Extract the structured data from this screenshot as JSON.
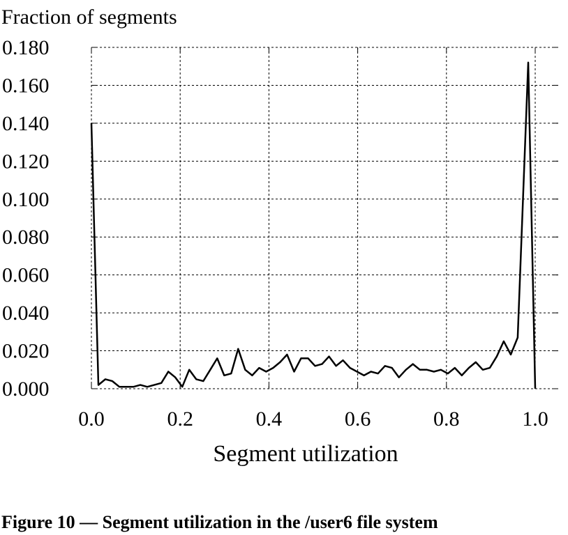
{
  "chart_data": {
    "type": "line",
    "title": "",
    "ylabel": "Fraction of segments",
    "xlabel": "Segment utilization",
    "xlim": [
      0.0,
      1.0
    ],
    "ylim": [
      0.0,
      0.18
    ],
    "grid": true,
    "x_ticks": [
      "0.0",
      "0.2",
      "0.4",
      "0.6",
      "0.8",
      "1.0"
    ],
    "y_ticks": [
      "0.000",
      "0.020",
      "0.040",
      "0.060",
      "0.080",
      "0.100",
      "0.120",
      "0.140",
      "0.160",
      "0.180"
    ],
    "series": [
      {
        "x": [
          0.0,
          0.0157,
          0.0315,
          0.0472,
          0.063,
          0.0787,
          0.0945,
          0.1102,
          0.126,
          0.1417,
          0.1575,
          0.1732,
          0.189,
          0.2047,
          0.2205,
          0.2362,
          0.252,
          0.2677,
          0.2835,
          0.2992,
          0.315,
          0.3307,
          0.3465,
          0.3622,
          0.378,
          0.3937,
          0.4094,
          0.4252,
          0.4409,
          0.4567,
          0.4724,
          0.4882,
          0.5039,
          0.5197,
          0.5354,
          0.5512,
          0.5669,
          0.5827,
          0.5984,
          0.6142,
          0.6299,
          0.6457,
          0.6614,
          0.6772,
          0.6929,
          0.7087,
          0.7244,
          0.7402,
          0.7559,
          0.7717,
          0.7874,
          0.8031,
          0.8189,
          0.8346,
          0.8504,
          0.8661,
          0.8819,
          0.8976,
          0.9134,
          0.9291,
          0.9449,
          0.9606,
          0.9843,
          1.0
        ],
        "values": [
          0.14,
          0.002,
          0.005,
          0.004,
          0.001,
          0.001,
          0.001,
          0.002,
          0.001,
          0.002,
          0.003,
          0.009,
          0.006,
          0.001,
          0.01,
          0.005,
          0.004,
          0.01,
          0.016,
          0.007,
          0.008,
          0.021,
          0.01,
          0.007,
          0.011,
          0.009,
          0.011,
          0.014,
          0.018,
          0.009,
          0.016,
          0.016,
          0.012,
          0.013,
          0.017,
          0.012,
          0.015,
          0.011,
          0.009,
          0.007,
          0.009,
          0.008,
          0.012,
          0.011,
          0.006,
          0.01,
          0.013,
          0.01,
          0.01,
          0.009,
          0.01,
          0.008,
          0.011,
          0.007,
          0.011,
          0.014,
          0.01,
          0.011,
          0.017,
          0.025,
          0.018,
          0.027,
          0.172,
          0.0
        ]
      }
    ]
  },
  "caption": "Figure 10 — Segment utilization in the /user6 file system"
}
